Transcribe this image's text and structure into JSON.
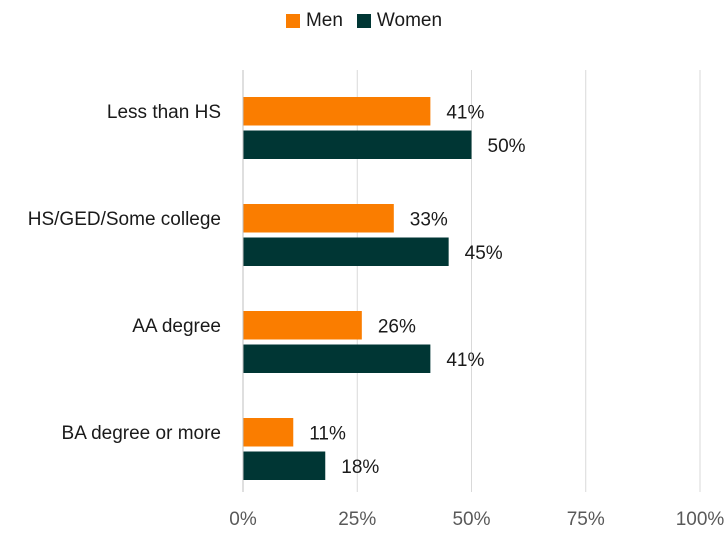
{
  "chart_data": {
    "type": "bar",
    "orientation": "horizontal",
    "categories": [
      "Less than HS",
      "HS/GED/Some college",
      "AA degree",
      "BA degree or more"
    ],
    "series": [
      {
        "name": "Men",
        "values": [
          41,
          33,
          26,
          11
        ],
        "color": "#fa7d00"
      },
      {
        "name": "Women",
        "values": [
          50,
          45,
          41,
          18
        ],
        "color": "#003634"
      }
    ],
    "xlim": [
      0,
      100
    ],
    "xticks": [
      0,
      25,
      50,
      75,
      100
    ],
    "tick_suffix": "%",
    "value_suffix": "%",
    "grid": true,
    "legend": "top-center"
  }
}
